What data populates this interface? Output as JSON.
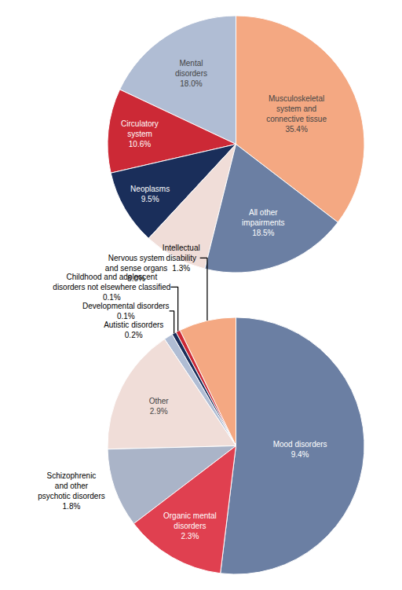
{
  "chart_data": [
    {
      "type": "pie",
      "categories": [
        "Musculoskeletal\nsystem and\nconnective tissue\n35.4%",
        "Mental\ndisorders\n18.0%",
        "Circulatory\nsystem\n10.6%",
        "Neoplasms\n9.5%",
        "Nervous system\nand sense organs\n8.0%",
        "All other\nimpairments\n18.5%"
      ],
      "values": [
        35.4,
        18.0,
        10.6,
        9.5,
        8.0,
        18.5
      ],
      "colors": [
        "#f4a882",
        "#b0bdd4",
        "#cc2936",
        "#1a2e5a",
        "#f0ddd8",
        "#6b7fa3"
      ]
    },
    {
      "type": "pie",
      "categories": [
        "Mood disorders\n9.4%",
        "Intellectual\ndisability\n1.3%",
        "Childhood and adolescent\ndisorders not elsewhere classified\n0.1%",
        "Developmental disorders\n0.1%",
        "Autistic disorders\n0.2%",
        "Other\n2.9%",
        "Schizophrenic\nand other\npsychotic disorders\n1.8%",
        "Organic mental\ndisorders\n2.3%"
      ],
      "values": [
        9.4,
        1.3,
        0.1,
        0.1,
        0.2,
        2.9,
        1.8,
        2.3
      ],
      "colors": [
        "#6b7fa3",
        "#f4a882",
        "#cc2936",
        "#1a2e5a",
        "#b0bdd4",
        "#f0ddd8",
        "#aab4c8",
        "#e04050"
      ]
    }
  ]
}
